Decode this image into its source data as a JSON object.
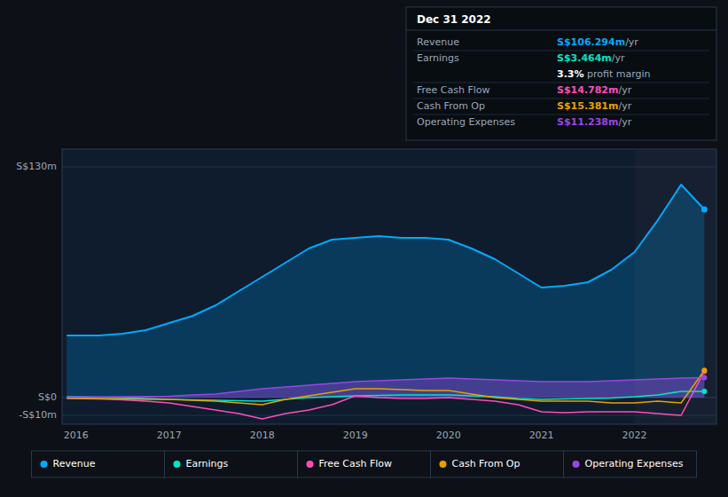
{
  "chart_data": {
    "type": "line",
    "x": [
      2015.9,
      2016.25,
      2016.5,
      2016.75,
      2017.0,
      2017.25,
      2017.5,
      2017.75,
      2018.0,
      2018.25,
      2018.5,
      2018.75,
      2019.0,
      2019.25,
      2019.5,
      2019.75,
      2020.0,
      2020.25,
      2020.5,
      2020.75,
      2021.0,
      2021.25,
      2021.5,
      2021.75,
      2022.0,
      2022.25,
      2022.5,
      2022.75
    ],
    "series": [
      {
        "name": "Revenue",
        "color": "#00aaff",
        "type": "area",
        "values": [
          35,
          35,
          36,
          38,
          42,
          46,
          52,
          60,
          68,
          76,
          84,
          89,
          90,
          91,
          90,
          90,
          89,
          84,
          78,
          70,
          62,
          63,
          65,
          72,
          82,
          100,
          120,
          106
        ]
      },
      {
        "name": "Earnings",
        "color": "#00e5c8",
        "type": "line",
        "values": [
          0.5,
          0.3,
          0,
          -0.5,
          -1,
          -1.2,
          -1.5,
          -1.8,
          -2,
          -1,
          0,
          0.5,
          1,
          1.3,
          1.5,
          1.5,
          1.5,
          1.0,
          0.5,
          -0.5,
          -1,
          -0.8,
          -0.5,
          -0.2,
          0.5,
          1.5,
          3.5,
          3.46
        ]
      },
      {
        "name": "Free Cash Flow",
        "color": "#ff4db8",
        "type": "line",
        "values": [
          -0.5,
          -0.8,
          -1.2,
          -2,
          -3,
          -5,
          -7,
          -9,
          -12,
          -9,
          -7,
          -4,
          1,
          0,
          -0.5,
          -0.5,
          0,
          -1,
          -2,
          -4,
          -8,
          -8.5,
          -8,
          -8,
          -8,
          -9,
          -10,
          14.78
        ]
      },
      {
        "name": "Cash From Op",
        "color": "#e8a000",
        "type": "line",
        "values": [
          -0.3,
          -0.5,
          -0.8,
          -1,
          -1,
          -1.5,
          -2,
          -3,
          -4,
          -1,
          1,
          3,
          5,
          5,
          4.5,
          4,
          4,
          2,
          0,
          -1,
          -2,
          -2,
          -2,
          -3,
          -3,
          -2,
          -3,
          15.38
        ]
      },
      {
        "name": "Operating Expenses",
        "color": "#9b45e0",
        "type": "area",
        "values": [
          0.3,
          0.4,
          0.5,
          0.6,
          0.8,
          1.5,
          2,
          3.5,
          5,
          6,
          7,
          8,
          9,
          9.5,
          10,
          10.5,
          11,
          10.5,
          10,
          9.5,
          9,
          9,
          9,
          9.5,
          10,
          10.5,
          11,
          11.24
        ]
      }
    ],
    "highlight_from": 2022.0,
    "xlim": [
      2015.85,
      2022.88
    ],
    "xticks": [
      2016,
      2017,
      2018,
      2019,
      2020,
      2021,
      2022
    ],
    "ylim": [
      -15,
      140
    ],
    "yticks": [
      {
        "value": 130,
        "label": "S$130m"
      },
      {
        "value": 0,
        "label": "S$0"
      },
      {
        "value": -10,
        "label": "-S$10m"
      }
    ],
    "grid": true,
    "legend": "bottom",
    "annotation": {
      "title": "Dec 31 2022",
      "rows": [
        {
          "label": "Revenue",
          "value": "S$106.294m",
          "unit": "/yr",
          "color": "#00aaff"
        },
        {
          "label": "Earnings",
          "value": "S$3.464m",
          "unit": "/yr",
          "color": "#00e5c8"
        },
        {
          "value": "3.3%",
          "unit": " profit margin",
          "color": "#ffffff"
        },
        {
          "label": "Free Cash Flow",
          "value": "S$14.782m",
          "unit": "/yr",
          "color": "#ff4db8"
        },
        {
          "label": "Cash From Op",
          "value": "S$15.381m",
          "unit": "/yr",
          "color": "#e8a000"
        },
        {
          "label": "Operating Expenses",
          "value": "S$11.238m",
          "unit": "/yr",
          "color": "#9b45e0"
        }
      ]
    }
  }
}
